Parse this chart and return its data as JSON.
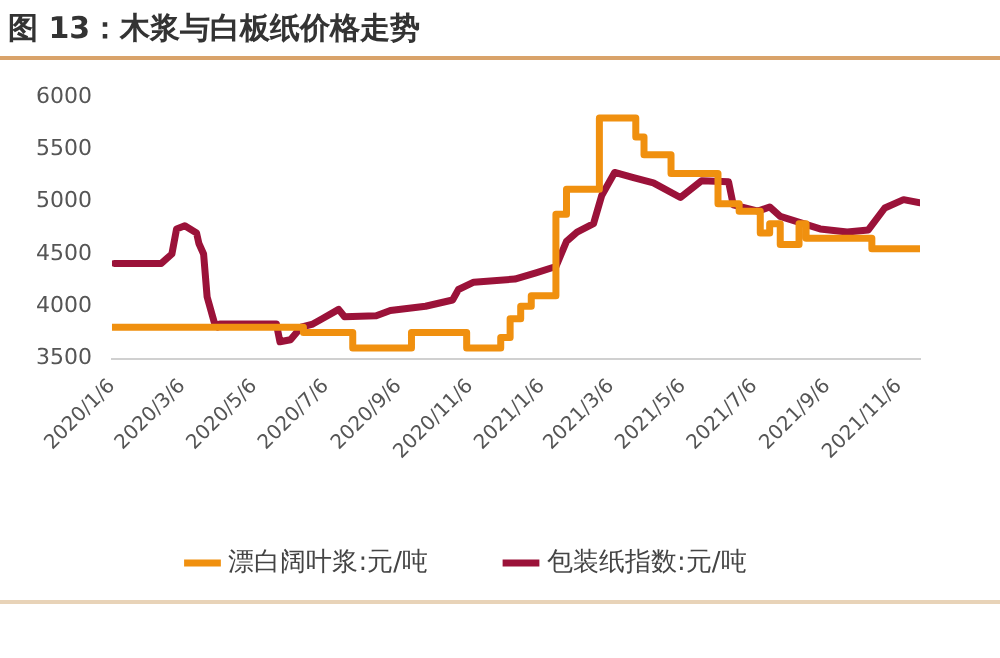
{
  "chart_data": {
    "type": "line",
    "title": "图 13：木浆与白板纸价格走势",
    "xlim": [
      "2020-01-06",
      "2021-11-24"
    ],
    "xticks": [
      {
        "value": "2020-01-06",
        "label": "2020/1/6"
      },
      {
        "value": "2020-03-06",
        "label": "2020/3/6"
      },
      {
        "value": "2020-05-06",
        "label": "2020/5/6"
      },
      {
        "value": "2020-07-06",
        "label": "2020/7/6"
      },
      {
        "value": "2020-09-06",
        "label": "2020/9/6"
      },
      {
        "value": "2020-11-06",
        "label": "2020/11/6"
      },
      {
        "value": "2021-01-06",
        "label": "2021/1/6"
      },
      {
        "value": "2021-03-06",
        "label": "2021/3/6"
      },
      {
        "value": "2021-05-06",
        "label": "2021/5/6"
      },
      {
        "value": "2021-07-06",
        "label": "2021/7/6"
      },
      {
        "value": "2021-09-06",
        "label": "2021/9/6"
      },
      {
        "value": "2021-11-06",
        "label": "2021/11/6"
      }
    ],
    "ylim": [
      3500,
      6000
    ],
    "yticks": [
      3500,
      4000,
      4500,
      5000,
      5500,
      6000
    ],
    "grid": false,
    "legend": "bottom",
    "marker": "none",
    "series": [
      {
        "name": "漂白阔叶浆:元/吨",
        "type": "step",
        "color": "#f0900f",
        "x": [
          "2020-01-06",
          "2020-06-17",
          "2020-07-29",
          "2020-09-17",
          "2020-11-03",
          "2020-12-02",
          "2020-12-10",
          "2020-12-19",
          "2020-12-28",
          "2021-01-18",
          "2021-01-27",
          "2021-02-24",
          "2021-03-27",
          "2021-04-03",
          "2021-04-26",
          "2021-06-05",
          "2021-06-23",
          "2021-07-11",
          "2021-07-19",
          "2021-07-28",
          "2021-08-13",
          "2021-08-19",
          "2021-10-14",
          "2021-11-24"
        ],
        "values": [
          3800,
          3750,
          3600,
          3750,
          3600,
          3700,
          3880,
          4000,
          4100,
          4880,
          5120,
          5800,
          5620,
          5450,
          5270,
          4980,
          4910,
          4700,
          4790,
          4590,
          4790,
          4650,
          4550,
          4550
        ]
      },
      {
        "name": "包装纸指数:元/吨",
        "type": "line",
        "color": "#9b1239",
        "x": [
          "2020-01-08",
          "2020-02-17",
          "2020-02-26",
          "2020-03-01",
          "2020-03-08",
          "2020-03-18",
          "2020-03-20",
          "2020-03-24",
          "2020-03-27",
          "2020-04-02",
          "2020-04-05",
          "2020-04-07",
          "2020-05-25",
          "2020-05-28",
          "2020-06-06",
          "2020-06-15",
          "2020-06-25",
          "2020-07-03",
          "2020-07-17",
          "2020-07-22",
          "2020-08-18",
          "2020-08-30",
          "2020-09-29",
          "2020-10-22",
          "2020-10-27",
          "2020-11-09",
          "2020-12-14",
          "2021-01-01",
          "2021-01-18",
          "2021-01-27",
          "2021-02-05",
          "2021-02-19",
          "2021-02-26",
          "2021-03-09",
          "2021-03-25",
          "2021-04-11",
          "2021-05-04",
          "2021-05-22",
          "2021-06-14",
          "2021-06-18",
          "2021-07-09",
          "2021-07-19",
          "2021-07-28",
          "2021-08-31",
          "2021-09-23",
          "2021-10-11",
          "2021-10-25",
          "2021-11-10",
          "2021-11-24"
        ],
        "values": [
          4410,
          4410,
          4500,
          4740,
          4770,
          4700,
          4600,
          4500,
          4090,
          3850,
          3800,
          3830,
          3830,
          3660,
          3680,
          3800,
          3830,
          3880,
          3970,
          3900,
          3910,
          3960,
          4000,
          4060,
          4160,
          4230,
          4260,
          4320,
          4380,
          4620,
          4710,
          4790,
          5060,
          5280,
          5230,
          5180,
          5040,
          5200,
          5190,
          4970,
          4910,
          4950,
          4860,
          4740,
          4710,
          4730,
          4940,
          5020,
          4990
        ]
      }
    ]
  }
}
